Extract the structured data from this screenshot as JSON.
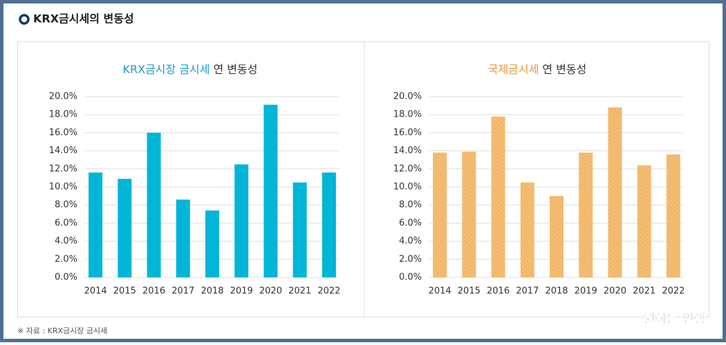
{
  "header": {
    "title": "KRX금시세의 변동성"
  },
  "chart_data": [
    {
      "type": "bar",
      "title_parts": [
        "KRX금시장 금시세",
        "연 변동성"
      ],
      "title_color": "#1a9cc4",
      "categories": [
        "2014",
        "2015",
        "2016",
        "2017",
        "2018",
        "2019",
        "2020",
        "2021",
        "2022"
      ],
      "values": [
        11.6,
        10.9,
        16.0,
        8.6,
        7.4,
        12.5,
        19.1,
        10.5,
        11.6
      ],
      "color": "#00b5d8",
      "hatched": false,
      "ylim": [
        0,
        20
      ],
      "yticks": [
        {
          "value": 0,
          "label": "0.0%"
        },
        {
          "value": 2,
          "label": "2.0%"
        },
        {
          "value": 4,
          "label": "4.0%"
        },
        {
          "value": 6,
          "label": "6.0%"
        },
        {
          "value": 8,
          "label": "8.0%"
        },
        {
          "value": 10,
          "label": "10.0%"
        },
        {
          "value": 12,
          "label": "12.0%"
        },
        {
          "value": 14,
          "label": "14.0%"
        },
        {
          "value": 16,
          "label": "16.0%"
        },
        {
          "value": 18,
          "label": "18.0%"
        },
        {
          "value": 20,
          "label": "20.0%"
        }
      ],
      "grid": true
    },
    {
      "type": "bar",
      "title_parts": [
        "국제금시세",
        "연 변동성"
      ],
      "title_color": "#e8963a",
      "categories": [
        "2014",
        "2015",
        "2016",
        "2017",
        "2018",
        "2019",
        "2020",
        "2021",
        "2022"
      ],
      "values": [
        13.8,
        13.9,
        17.8,
        10.5,
        9.0,
        13.8,
        18.8,
        12.4,
        13.6
      ],
      "color": "#f2b564",
      "hatched": true,
      "ylim": [
        0,
        20
      ],
      "yticks": [
        {
          "value": 0,
          "label": "0.0%"
        },
        {
          "value": 2,
          "label": "2.0%"
        },
        {
          "value": 4,
          "label": "4.0%"
        },
        {
          "value": 6,
          "label": "6.0%"
        },
        {
          "value": 8,
          "label": "8.0%"
        },
        {
          "value": 10,
          "label": "10.0%"
        },
        {
          "value": 12,
          "label": "12.0%"
        },
        {
          "value": 14,
          "label": "14.0%"
        },
        {
          "value": 16,
          "label": "16.0%"
        },
        {
          "value": 18,
          "label": "18.0%"
        },
        {
          "value": 20,
          "label": "20.0%"
        }
      ],
      "grid": true
    }
  ],
  "footer": {
    "source": "※ 자료 : KRX금시장 금시세",
    "watermark": "원하는 인생"
  }
}
